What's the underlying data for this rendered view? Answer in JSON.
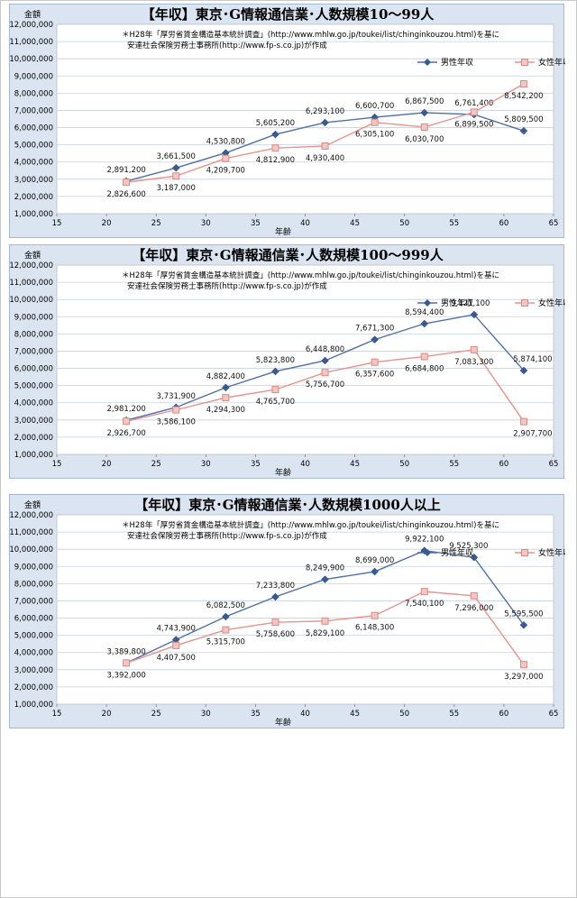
{
  "colors": {
    "male": "#4f6fa8",
    "male_marker": "#3a5a92",
    "female": "#e8928c",
    "female_marker": "#d98a84",
    "female_marker_fill": "#f2c7c3",
    "panel": "#dbe5f1",
    "plot": "#ffffff",
    "grid": "#c6d2e0"
  },
  "chart_data": [
    {
      "type": "line",
      "title": "【年収】東京･G情報通信業･人数規模10～99人",
      "note_line1": "＊H28年「厚労省賃金構造基本統計調査」(http://www.mhlw.go.jp/toukei/list/chinginkouzou.html)を基に",
      "note_line2": "安達社会保険労務士事務所(http://www.fp-s.co.jp)が作成",
      "ylabel": "金額",
      "xlabel": "年齢",
      "xlim": [
        15,
        65
      ],
      "ylim": [
        1000000,
        12000000
      ],
      "xticks": [
        "15",
        "20",
        "25",
        "30",
        "35",
        "40",
        "45",
        "50",
        "55",
        "60",
        "65"
      ],
      "yticks": [
        "1,000,000",
        "2,000,000",
        "3,000,000",
        "4,000,000",
        "5,000,000",
        "6,000,000",
        "7,000,000",
        "8,000,000",
        "9,000,000",
        "10,000,000",
        "11,000,000",
        "12,000,000"
      ],
      "x": [
        22,
        27,
        32,
        37,
        42,
        47,
        52,
        57,
        62
      ],
      "legend_position": "top-right",
      "grid": true,
      "series": [
        {
          "name": "男性年収",
          "values": [
            2891200,
            3661500,
            4530800,
            5605200,
            6293100,
            6600700,
            6867500,
            6761400,
            5809500
          ],
          "labels": [
            "2,891,200",
            "3,661,500",
            "4,530,800",
            "5,605,200",
            "6,293,100",
            "6,600,700",
            "6,867,500",
            "6,761,400",
            "5,809,500"
          ]
        },
        {
          "name": "女性年収",
          "values": [
            2826600,
            3187000,
            4209700,
            4812900,
            4930400,
            6305100,
            6030700,
            6899500,
            8542200
          ],
          "labels": [
            "2,826,600",
            "3,187,000",
            "4,209,700",
            "4,812,900",
            "4,930,400",
            "6,305,100",
            "6,030,700",
            "6,899,500",
            "8,542,200"
          ]
        }
      ]
    },
    {
      "type": "line",
      "title": "【年収】東京･G情報通信業･人数規模100～999人",
      "note_line1": "＊H28年「厚労省賃金構造基本統計調査」(http://www.mhlw.go.jp/toukei/list/chinginkouzou.html)を基に",
      "note_line2": "安達社会保険労務士事務所(http://www.fp-s.co.jp)が作成",
      "ylabel": "金額",
      "xlabel": "年齢",
      "xlim": [
        15,
        65
      ],
      "ylim": [
        1000000,
        12000000
      ],
      "xticks": [
        "15",
        "20",
        "25",
        "30",
        "35",
        "40",
        "45",
        "50",
        "55",
        "60",
        "65"
      ],
      "yticks": [
        "1,000,000",
        "2,000,000",
        "3,000,000",
        "4,000,000",
        "5,000,000",
        "6,000,000",
        "7,000,000",
        "8,000,000",
        "9,000,000",
        "10,000,000",
        "11,000,000",
        "12,000,000"
      ],
      "x": [
        22,
        27,
        32,
        37,
        42,
        47,
        52,
        57,
        62
      ],
      "legend_position": "top-right",
      "grid": true,
      "series": [
        {
          "name": "男性年収",
          "values": [
            2981200,
            3731900,
            4882400,
            5823800,
            6448800,
            7671300,
            8594400,
            9121100,
            5874100
          ],
          "labels": [
            "2,981,200",
            "3,731,900",
            "4,882,400",
            "5,823,800",
            "6,448,800",
            "7,671,300",
            "8,594,400",
            "9,121,100",
            "5,874,100"
          ]
        },
        {
          "name": "女性年収",
          "values": [
            2926700,
            3586100,
            4294300,
            4765700,
            5756700,
            6357600,
            6684800,
            7083300,
            2907700
          ],
          "labels": [
            "2,926,700",
            "3,586,100",
            "4,294,300",
            "4,765,700",
            "5,756,700",
            "6,357,600",
            "6,684,800",
            "7,083,300",
            "2,907,700"
          ]
        }
      ]
    },
    {
      "type": "line",
      "title": "【年収】東京･G情報通信業･人数規模1000人以上",
      "note_line1": "＊H28年「厚労省賃金構造基本統計調査」(http://www.mhlw.go.jp/toukei/list/chinginkouzou.html)を基に",
      "note_line2": "安達社会保険労務士事務所(http://www.fp-s.co.jp)が作成",
      "ylabel": "金額",
      "xlabel": "年齢",
      "xlim": [
        15,
        65
      ],
      "ylim": [
        1000000,
        12000000
      ],
      "xticks": [
        "15",
        "20",
        "25",
        "30",
        "35",
        "40",
        "45",
        "50",
        "55",
        "60",
        "65"
      ],
      "yticks": [
        "1,000,000",
        "2,000,000",
        "3,000,000",
        "4,000,000",
        "5,000,000",
        "6,000,000",
        "7,000,000",
        "8,000,000",
        "9,000,000",
        "10,000,000",
        "11,000,000",
        "12,000,000"
      ],
      "x": [
        22,
        27,
        32,
        37,
        42,
        47,
        52,
        57,
        62
      ],
      "legend_position": "top-right",
      "grid": true,
      "series": [
        {
          "name": "男性年収",
          "values": [
            3389800,
            4743900,
            6082500,
            7233800,
            8249900,
            8699000,
            9922100,
            9525300,
            5595500
          ],
          "labels": [
            "3,389,800",
            "4,743,900",
            "6,082,500",
            "7,233,800",
            "8,249,900",
            "8,699,000",
            "9,922,100",
            "9,525,300",
            "5,595,500"
          ]
        },
        {
          "name": "女性年収",
          "values": [
            3392000,
            4407500,
            5315700,
            5758600,
            5829100,
            6148300,
            7540100,
            7296000,
            3297000
          ],
          "labels": [
            "3,392,000",
            "4,407,500",
            "5,315,700",
            "5,758,600",
            "5,829,100",
            "6,148,300",
            "7,540,100",
            "7,296,000",
            "3,297,000"
          ]
        }
      ]
    }
  ]
}
